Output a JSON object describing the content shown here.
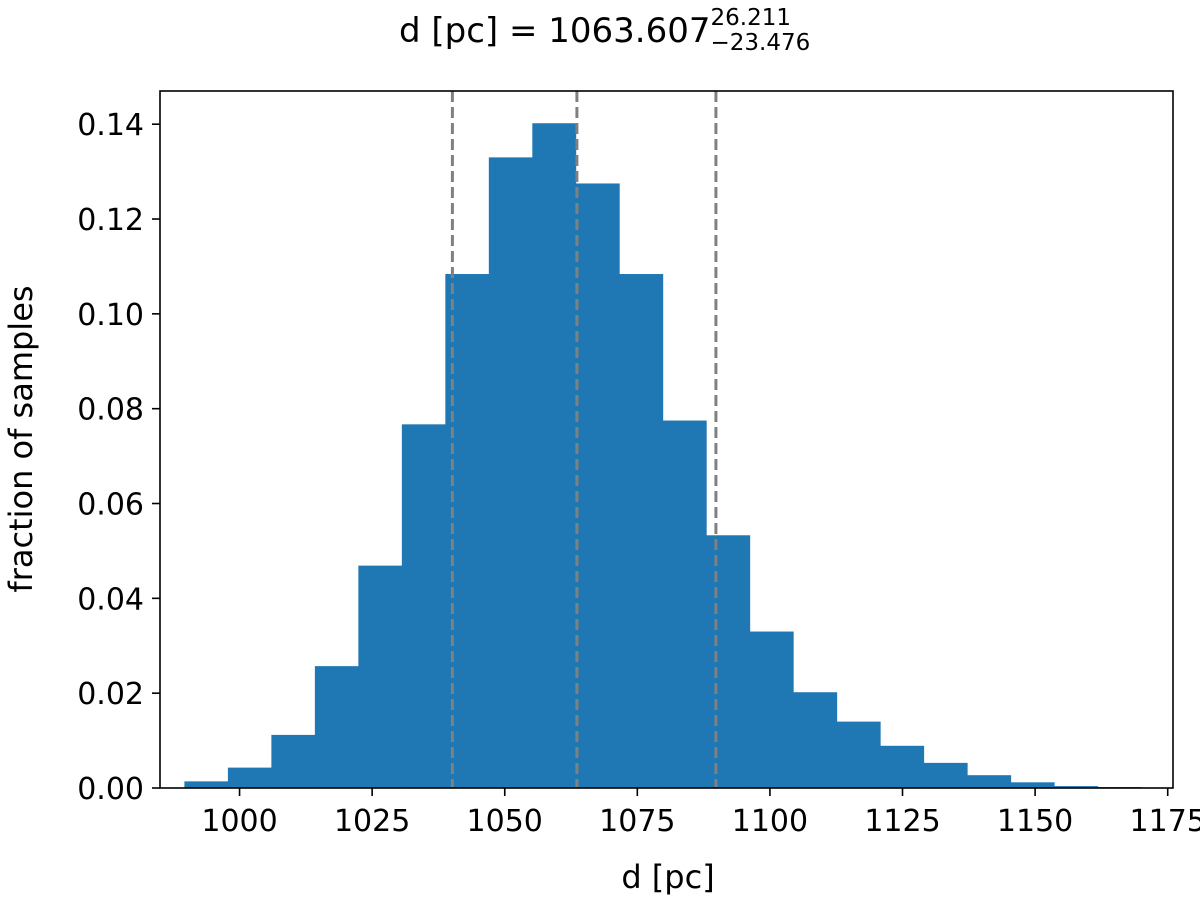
{
  "chart_data": {
    "type": "bar",
    "title": {
      "main": "d [pc] = 1063.607",
      "upper": "26.211",
      "lower": "−23.476"
    },
    "xlabel": "d [pc]",
    "ylabel": "fraction of samples",
    "xlim": [
      985,
      1176
    ],
    "ylim": [
      0,
      0.147
    ],
    "xticks": [
      1000,
      1025,
      1050,
      1075,
      1100,
      1125,
      1150,
      1175
    ],
    "yticks": [
      0.0,
      0.02,
      0.04,
      0.06,
      0.08,
      0.1,
      0.12,
      0.14
    ],
    "ytick_labels": [
      "0.00",
      "0.02",
      "0.04",
      "0.06",
      "0.08",
      "0.10",
      "0.12",
      "0.14"
    ],
    "bin_edges": [
      989.6,
      997.8,
      1006.0,
      1014.2,
      1022.4,
      1030.6,
      1038.8,
      1047.0,
      1055.2,
      1063.4,
      1071.6,
      1079.8,
      1088.0,
      1096.2,
      1104.4,
      1112.6,
      1120.8,
      1129.0,
      1137.2,
      1145.4,
      1153.6,
      1161.8,
      1170.0
    ],
    "values": [
      0.0014,
      0.0043,
      0.0112,
      0.0257,
      0.0469,
      0.0767,
      0.1084,
      0.133,
      0.1402,
      0.1275,
      0.1084,
      0.0775,
      0.0533,
      0.033,
      0.0202,
      0.014,
      0.0089,
      0.0053,
      0.0027,
      0.0012,
      0.0004,
      0.0002
    ],
    "bar_color": "#1f77b4",
    "vlines": [
      1040.131,
      1063.607,
      1089.818
    ],
    "vline_color": "#808080",
    "grid": false
  }
}
